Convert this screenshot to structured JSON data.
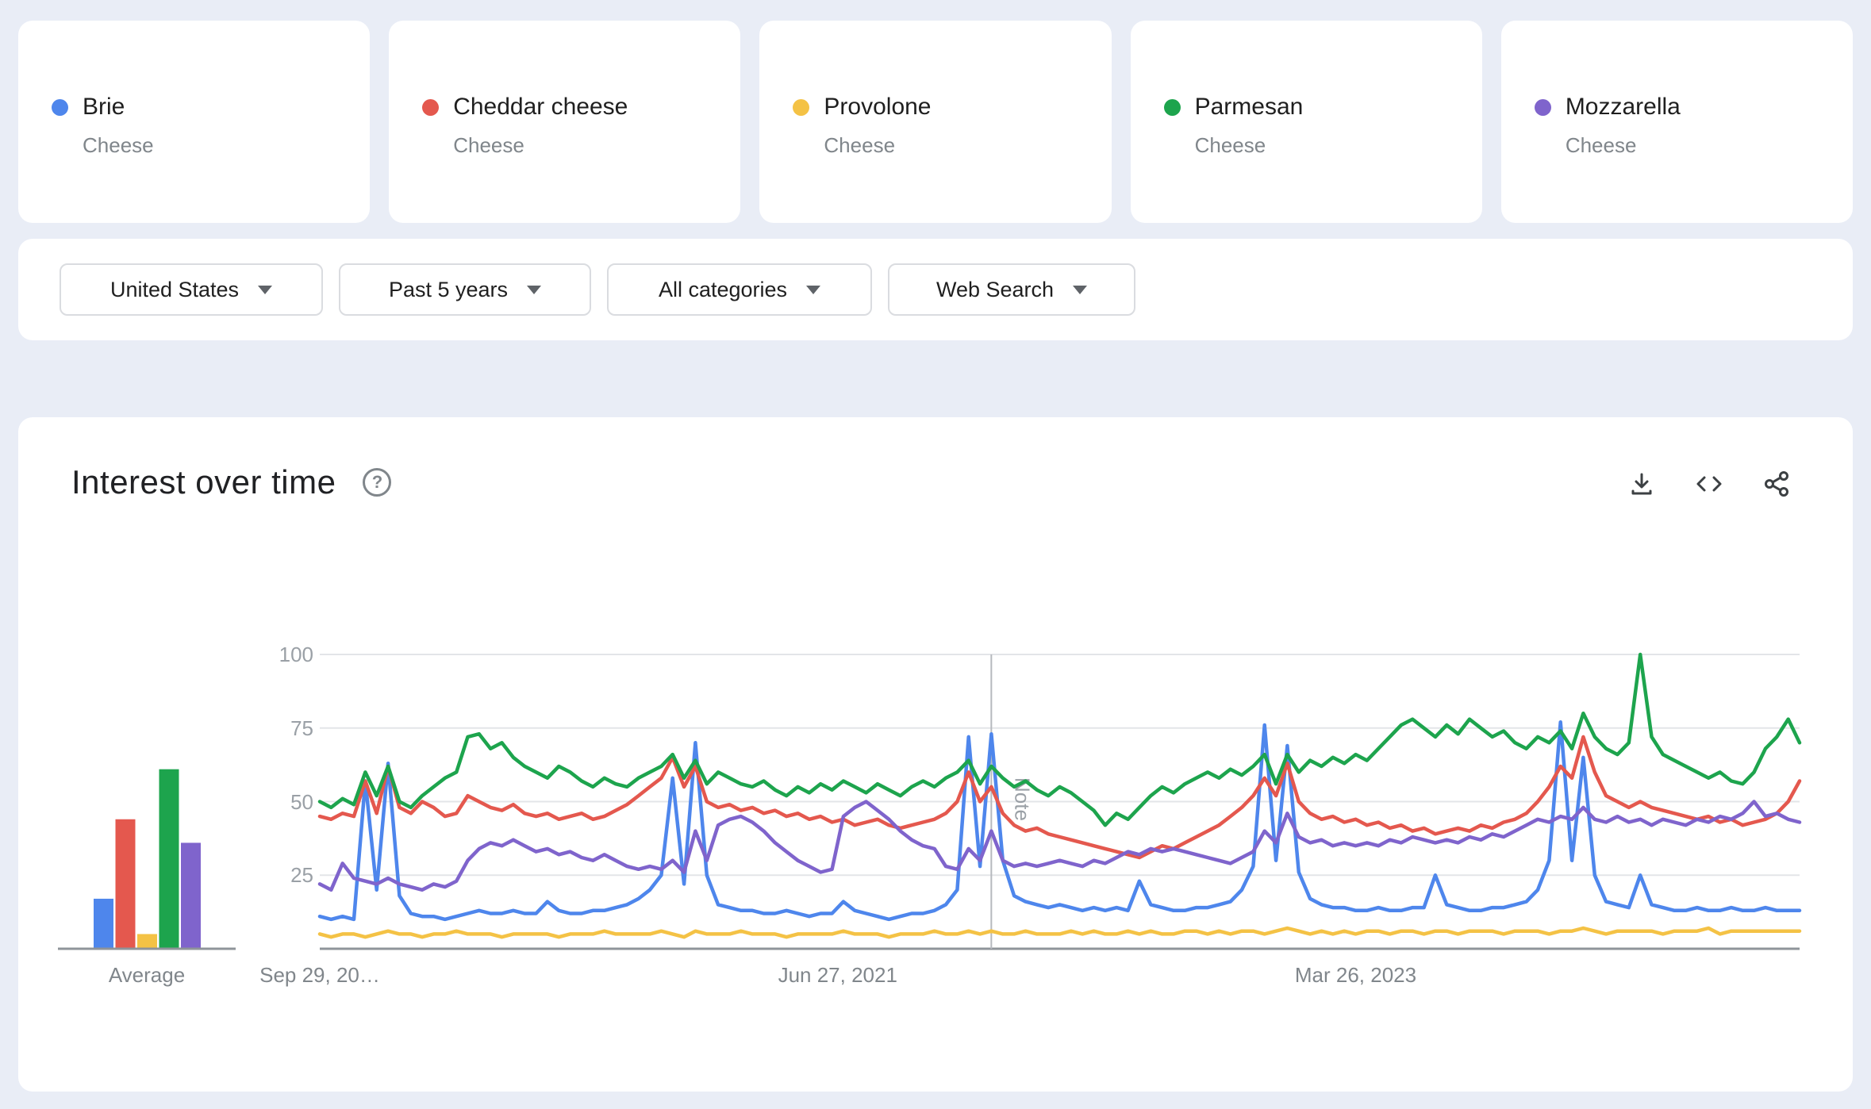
{
  "terms": [
    {
      "label": "Brie",
      "subtitle": "Cheese",
      "color": "#4e86ec"
    },
    {
      "label": "Cheddar cheese",
      "subtitle": "Cheese",
      "color": "#e4584e"
    },
    {
      "label": "Provolone",
      "subtitle": "Cheese",
      "color": "#f4c245"
    },
    {
      "label": "Parmesan",
      "subtitle": "Cheese",
      "color": "#1da44d"
    },
    {
      "label": "Mozzarella",
      "subtitle": "Cheese",
      "color": "#7f64cc"
    }
  ],
  "filters": [
    {
      "label": "United States"
    },
    {
      "label": "Past 5 years"
    },
    {
      "label": "All categories"
    },
    {
      "label": "Web Search"
    }
  ],
  "section": {
    "title": "Interest over time"
  },
  "chart_data": {
    "type": "line",
    "title": "Interest over time",
    "ylim": [
      0,
      100
    ],
    "yticks": [
      25,
      50,
      75,
      100
    ],
    "grid": true,
    "legend_position": "none",
    "xticks": [
      {
        "label": "Sep 29, 20…",
        "pos": 0.0
      },
      {
        "label": "Jun 27, 2021",
        "pos": 0.35
      },
      {
        "label": "Mar 26, 2023",
        "pos": 0.7
      }
    ],
    "note": {
      "label": "Note",
      "pos": 0.4538
    },
    "colors": {
      "grid": "#e3e5e8",
      "axis": "#8f949a",
      "note_line": "#b6b9be",
      "tick_text": "#9aa0a6"
    },
    "series": [
      {
        "name": "Brie",
        "color": "#4e86ec",
        "values": [
          11,
          10,
          11,
          10,
          57,
          20,
          63,
          18,
          12,
          11,
          11,
          10,
          11,
          12,
          13,
          12,
          12,
          13,
          12,
          12,
          16,
          13,
          12,
          12,
          13,
          13,
          14,
          15,
          17,
          20,
          25,
          58,
          22,
          70,
          25,
          15,
          14,
          13,
          13,
          12,
          12,
          13,
          12,
          11,
          12,
          12,
          16,
          13,
          12,
          11,
          10,
          11,
          12,
          12,
          13,
          15,
          20,
          72,
          28,
          73,
          30,
          18,
          16,
          15,
          14,
          15,
          14,
          13,
          14,
          13,
          14,
          13,
          23,
          15,
          14,
          13,
          13,
          14,
          14,
          15,
          16,
          20,
          28,
          76,
          30,
          69,
          26,
          17,
          15,
          14,
          14,
          13,
          13,
          14,
          13,
          13,
          14,
          14,
          25,
          15,
          14,
          13,
          13,
          14,
          14,
          15,
          16,
          20,
          30,
          77,
          30,
          65,
          25,
          16,
          15,
          14,
          25,
          15,
          14,
          13,
          13,
          14,
          13,
          13,
          14,
          13,
          13,
          14,
          13,
          13,
          13
        ]
      },
      {
        "name": "Cheddar cheese",
        "color": "#e4584e",
        "values": [
          45,
          44,
          46,
          45,
          57,
          46,
          62,
          48,
          46,
          50,
          48,
          45,
          46,
          52,
          50,
          48,
          47,
          49,
          46,
          45,
          46,
          44,
          45,
          46,
          44,
          45,
          47,
          49,
          52,
          55,
          58,
          65,
          55,
          62,
          50,
          48,
          49,
          47,
          48,
          46,
          47,
          45,
          46,
          44,
          45,
          43,
          44,
          42,
          43,
          44,
          42,
          41,
          42,
          43,
          44,
          46,
          50,
          60,
          50,
          55,
          46,
          42,
          40,
          41,
          39,
          38,
          37,
          36,
          35,
          34,
          33,
          32,
          31,
          33,
          35,
          34,
          36,
          38,
          40,
          42,
          45,
          48,
          52,
          58,
          52,
          63,
          50,
          46,
          44,
          45,
          43,
          44,
          42,
          43,
          41,
          42,
          40,
          41,
          39,
          40,
          41,
          40,
          42,
          41,
          43,
          44,
          46,
          50,
          55,
          62,
          58,
          72,
          60,
          52,
          50,
          48,
          50,
          48,
          47,
          46,
          45,
          44,
          45,
          43,
          44,
          42,
          43,
          44,
          46,
          50,
          57
        ]
      },
      {
        "name": "Provolone",
        "color": "#f4c245",
        "values": [
          5,
          4,
          5,
          5,
          4,
          5,
          6,
          5,
          5,
          4,
          5,
          5,
          6,
          5,
          5,
          5,
          4,
          5,
          5,
          5,
          5,
          4,
          5,
          5,
          5,
          6,
          5,
          5,
          5,
          5,
          6,
          5,
          4,
          6,
          5,
          5,
          5,
          6,
          5,
          5,
          5,
          4,
          5,
          5,
          5,
          5,
          6,
          5,
          5,
          5,
          4,
          5,
          5,
          5,
          6,
          5,
          5,
          6,
          5,
          6,
          5,
          5,
          6,
          5,
          5,
          5,
          6,
          5,
          6,
          5,
          5,
          6,
          5,
          6,
          5,
          5,
          6,
          6,
          5,
          6,
          5,
          6,
          6,
          5,
          6,
          7,
          6,
          5,
          6,
          5,
          6,
          5,
          6,
          6,
          5,
          6,
          6,
          5,
          6,
          6,
          5,
          6,
          6,
          6,
          5,
          6,
          6,
          6,
          5,
          6,
          6,
          7,
          6,
          5,
          6,
          6,
          6,
          6,
          5,
          6,
          6,
          6,
          7,
          5,
          6,
          6,
          6,
          6,
          6,
          6,
          6
        ]
      },
      {
        "name": "Parmesan",
        "color": "#1da44d",
        "values": [
          50,
          48,
          51,
          49,
          60,
          52,
          62,
          50,
          48,
          52,
          55,
          58,
          60,
          72,
          73,
          68,
          70,
          65,
          62,
          60,
          58,
          62,
          60,
          57,
          55,
          58,
          56,
          55,
          58,
          60,
          62,
          66,
          58,
          64,
          56,
          60,
          58,
          56,
          55,
          57,
          54,
          52,
          55,
          53,
          56,
          54,
          57,
          55,
          53,
          56,
          54,
          52,
          55,
          57,
          55,
          58,
          60,
          64,
          56,
          62,
          58,
          55,
          57,
          54,
          52,
          55,
          53,
          50,
          47,
          42,
          46,
          44,
          48,
          52,
          55,
          53,
          56,
          58,
          60,
          58,
          61,
          59,
          62,
          66,
          56,
          66,
          60,
          64,
          62,
          65,
          63,
          66,
          64,
          68,
          72,
          76,
          78,
          75,
          72,
          76,
          73,
          78,
          75,
          72,
          74,
          70,
          68,
          72,
          70,
          74,
          68,
          80,
          72,
          68,
          66,
          70,
          100,
          72,
          66,
          64,
          62,
          60,
          58,
          60,
          57,
          56,
          60,
          68,
          72,
          78,
          70
        ]
      },
      {
        "name": "Mozzarella",
        "color": "#7f64cc",
        "values": [
          22,
          20,
          29,
          24,
          23,
          22,
          24,
          22,
          21,
          20,
          22,
          21,
          23,
          30,
          34,
          36,
          35,
          37,
          35,
          33,
          34,
          32,
          33,
          31,
          30,
          32,
          30,
          28,
          27,
          28,
          27,
          30,
          26,
          40,
          30,
          42,
          44,
          45,
          43,
          40,
          36,
          33,
          30,
          28,
          26,
          27,
          45,
          48,
          50,
          47,
          44,
          40,
          37,
          35,
          34,
          28,
          27,
          34,
          30,
          40,
          30,
          28,
          29,
          28,
          29,
          30,
          29,
          28,
          30,
          29,
          31,
          33,
          32,
          34,
          33,
          34,
          33,
          32,
          31,
          30,
          29,
          31,
          33,
          40,
          36,
          46,
          38,
          36,
          37,
          35,
          36,
          35,
          36,
          35,
          37,
          36,
          38,
          37,
          36,
          37,
          36,
          38,
          37,
          39,
          38,
          40,
          42,
          44,
          43,
          45,
          44,
          48,
          44,
          43,
          45,
          43,
          44,
          42,
          44,
          43,
          42,
          44,
          43,
          45,
          44,
          46,
          50,
          45,
          46,
          44,
          43
        ]
      }
    ]
  },
  "average_chart": {
    "type": "bar",
    "xlabel": "Average",
    "categories": [
      "Brie",
      "Cheddar cheese",
      "Provolone",
      "Parmesan",
      "Mozzarella"
    ],
    "values": [
      17,
      44,
      5,
      61,
      36
    ]
  }
}
